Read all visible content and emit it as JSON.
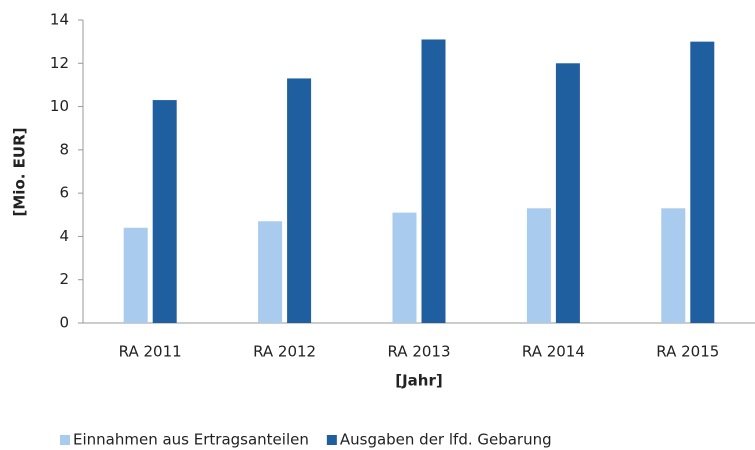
{
  "chart_data": {
    "type": "bar",
    "categories": [
      "RA 2011",
      "RA 2012",
      "RA 2013",
      "RA 2014",
      "RA 2015"
    ],
    "series": [
      {
        "name": "Einnahmen aus Ertragsanteilen",
        "color": "#a9cbee",
        "values": [
          4.4,
          4.7,
          5.1,
          5.3,
          5.3
        ]
      },
      {
        "name": "Ausgaben der lfd. Gebarung",
        "color": "#1f5fa0",
        "values": [
          10.3,
          11.3,
          13.1,
          12.0,
          13.0
        ]
      }
    ],
    "xlabel": "[Jahr]",
    "ylabel": "[Mio. EUR]",
    "ylim": [
      0,
      14
    ],
    "yticks": [
      0,
      2,
      4,
      6,
      8,
      10,
      12,
      14
    ],
    "grid": false,
    "legend": "bottom"
  }
}
